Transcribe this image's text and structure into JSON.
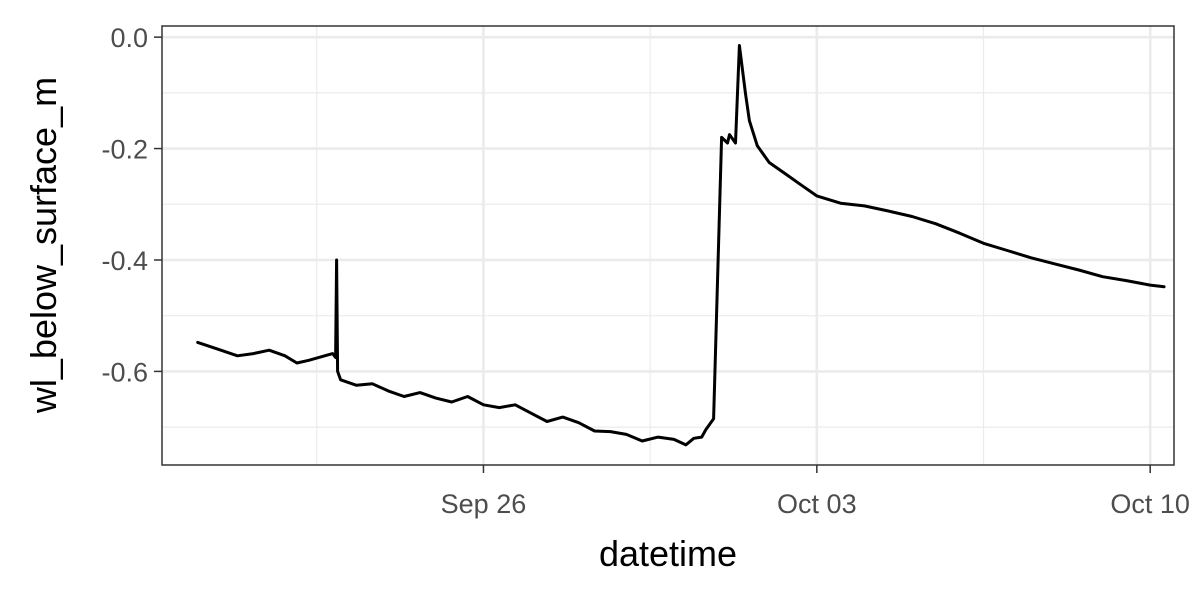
{
  "chart_data": {
    "type": "line",
    "title": "",
    "xlabel": "datetime",
    "ylabel": "wl_below_surface_m",
    "x_type": "datetime",
    "xlim": [
      "2025-09-19T06:00",
      "2025-10-10T12:00"
    ],
    "ylim": [
      -0.768,
      0.02
    ],
    "x_ticks": [
      {
        "value": "2025-09-26",
        "label": "Sep 26"
      },
      {
        "value": "2025-10-03",
        "label": "Oct 03"
      },
      {
        "value": "2025-10-10",
        "label": "Oct 10"
      }
    ],
    "x_minor_ticks": [
      "2025-09-22T12:00",
      "2025-09-29T12:00",
      "2025-10-06T12:00"
    ],
    "y_ticks": [
      {
        "value": 0.0,
        "label": "0.0"
      },
      {
        "value": -0.2,
        "label": "-0.2"
      },
      {
        "value": -0.4,
        "label": "-0.4"
      },
      {
        "value": -0.6,
        "label": "-0.6"
      }
    ],
    "y_minor_ticks": [
      -0.1,
      -0.3,
      -0.5,
      -0.7
    ],
    "grid": true,
    "legend": "none",
    "line_color": "#000000",
    "series": [
      {
        "x": [
          "2025-09-20T00:00",
          "2025-09-20T10:00",
          "2025-09-20T20:00",
          "2025-09-21T04:00",
          "2025-09-21T12:00",
          "2025-09-21T20:00",
          "2025-09-22T02:00",
          "2025-09-22T08:00",
          "2025-09-22T16:00",
          "2025-09-22T20:00",
          "2025-09-22T21:30",
          "2025-09-22T22:00",
          "2025-09-22T22:30",
          "2025-09-23T00:00",
          "2025-09-23T08:00",
          "2025-09-23T16:00",
          "2025-09-24T00:00",
          "2025-09-24T08:00",
          "2025-09-24T16:00",
          "2025-09-25T00:00",
          "2025-09-25T08:00",
          "2025-09-25T16:00",
          "2025-09-26T00:00",
          "2025-09-26T08:00",
          "2025-09-26T16:00",
          "2025-09-27T00:00",
          "2025-09-27T08:00",
          "2025-09-27T16:00",
          "2025-09-28T00:00",
          "2025-09-28T08:00",
          "2025-09-28T16:00",
          "2025-09-29T00:00",
          "2025-09-29T08:00",
          "2025-09-29T16:00",
          "2025-09-30T00:00",
          "2025-09-30T06:00",
          "2025-09-30T10:00",
          "2025-09-30T14:00",
          "2025-09-30T16:00",
          "2025-09-30T20:00",
          "2025-10-01T00:00",
          "2025-10-01T03:00",
          "2025-10-01T04:00",
          "2025-10-01T07:00",
          "2025-10-01T09:00",
          "2025-10-01T12:00",
          "2025-10-01T14:00",
          "2025-10-01T18:00",
          "2025-10-02T00:00",
          "2025-10-02T08:00",
          "2025-10-02T16:00",
          "2025-10-03T00:00",
          "2025-10-03T12:00",
          "2025-10-04T00:00",
          "2025-10-04T12:00",
          "2025-10-05T00:00",
          "2025-10-05T12:00",
          "2025-10-06T00:00",
          "2025-10-06T12:00",
          "2025-10-07T00:00",
          "2025-10-07T12:00",
          "2025-10-08T00:00",
          "2025-10-08T12:00",
          "2025-10-09T00:00",
          "2025-10-09T12:00",
          "2025-10-10T00:00",
          "2025-10-10T07:00"
        ],
        "y": [
          -0.548,
          -0.56,
          -0.572,
          -0.568,
          -0.562,
          -0.572,
          -0.585,
          -0.58,
          -0.572,
          -0.568,
          -0.575,
          -0.4,
          -0.6,
          -0.615,
          -0.625,
          -0.622,
          -0.635,
          -0.645,
          -0.638,
          -0.648,
          -0.655,
          -0.645,
          -0.66,
          -0.665,
          -0.66,
          -0.675,
          -0.69,
          -0.682,
          -0.692,
          -0.707,
          -0.708,
          -0.713,
          -0.725,
          -0.718,
          -0.722,
          -0.732,
          -0.72,
          -0.718,
          -0.705,
          -0.685,
          -0.18,
          -0.19,
          -0.175,
          -0.19,
          -0.015,
          -0.1,
          -0.15,
          -0.195,
          -0.225,
          -0.245,
          -0.265,
          -0.285,
          -0.298,
          -0.303,
          -0.312,
          -0.322,
          -0.335,
          -0.352,
          -0.37,
          -0.383,
          -0.396,
          -0.407,
          -0.418,
          -0.43,
          -0.437,
          -0.445,
          -0.448
        ]
      }
    ]
  }
}
